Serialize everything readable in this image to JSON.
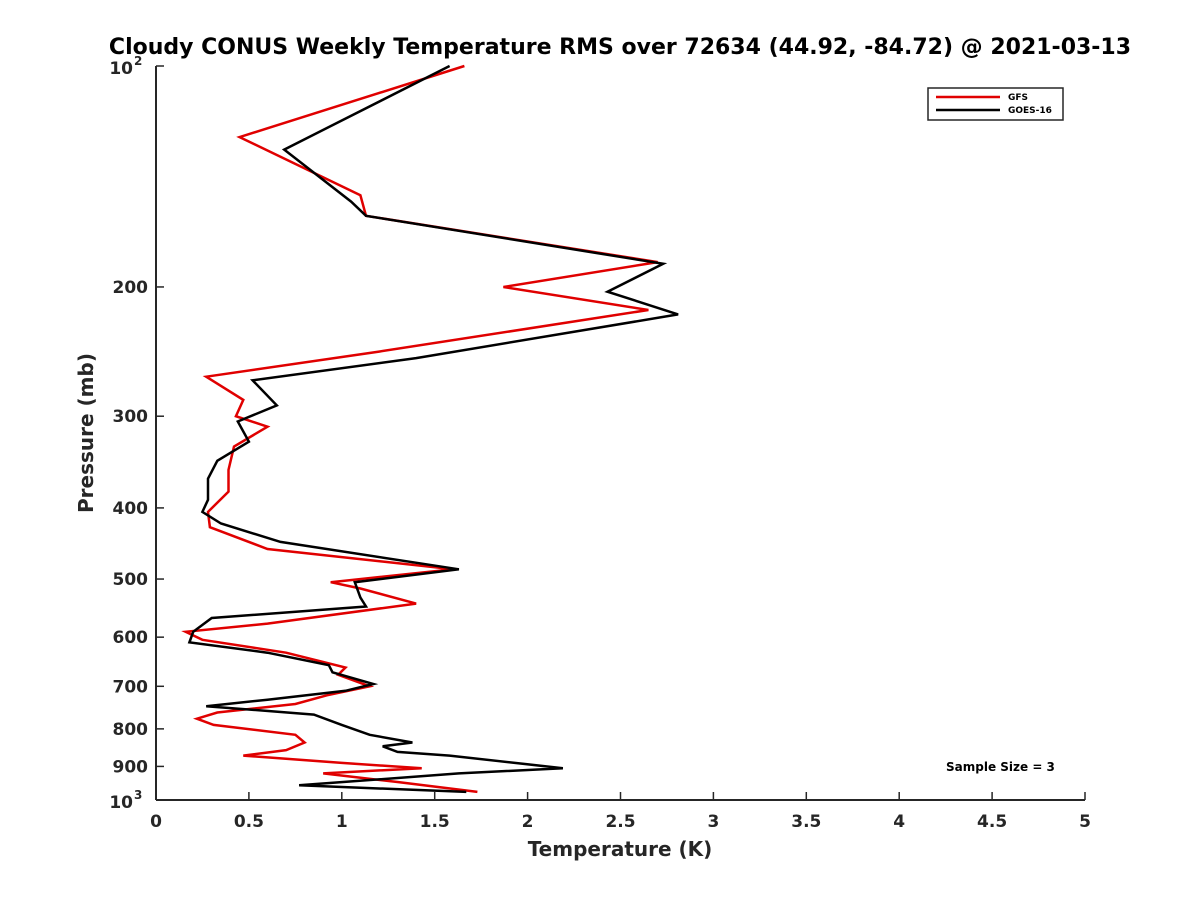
{
  "chart_data": {
    "type": "line",
    "title": "Cloudy CONUS Weekly Temperature RMS over 72634 (44.92, -84.72) @ 2021-03-13",
    "xlabel": "Temperature (K)",
    "ylabel": "Pressure (mb)",
    "xlim": [
      0,
      5
    ],
    "ylim": [
      100,
      1000
    ],
    "y_scale": "log",
    "y_reversed": true,
    "x_ticks": [
      "0",
      "0.5",
      "1",
      "1.5",
      "2",
      "2.5",
      "3",
      "3.5",
      "4",
      "4.5",
      "5"
    ],
    "y_ticks": [
      {
        "value": 100,
        "base": "10",
        "exp": "2"
      },
      {
        "value": 200,
        "label": "200"
      },
      {
        "value": 300,
        "label": "300"
      },
      {
        "value": 400,
        "label": "400"
      },
      {
        "value": 500,
        "label": "500"
      },
      {
        "value": 600,
        "label": "600"
      },
      {
        "value": 700,
        "label": "700"
      },
      {
        "value": 800,
        "label": "800"
      },
      {
        "value": 900,
        "label": "900"
      },
      {
        "value": 1000,
        "base": "10",
        "exp": "3"
      }
    ],
    "grid": false,
    "legend_position": "top-right",
    "annotation": "Sample Size = 3",
    "series": [
      {
        "name": "GFS",
        "color": "#e00000",
        "points": [
          [
            1.66,
            100
          ],
          [
            0.45,
            125
          ],
          [
            1.1,
            150
          ],
          [
            1.13,
            160
          ],
          [
            2.7,
            185
          ],
          [
            1.87,
            200
          ],
          [
            2.65,
            215
          ],
          [
            1.2,
            245
          ],
          [
            0.27,
            265
          ],
          [
            0.47,
            285
          ],
          [
            0.43,
            300
          ],
          [
            0.6,
            310
          ],
          [
            0.42,
            330
          ],
          [
            0.39,
            355
          ],
          [
            0.39,
            380
          ],
          [
            0.28,
            405
          ],
          [
            0.29,
            425
          ],
          [
            0.6,
            455
          ],
          [
            1.6,
            485
          ],
          [
            0.94,
            505
          ],
          [
            1.1,
            515
          ],
          [
            1.4,
            540
          ],
          [
            0.6,
            575
          ],
          [
            0.16,
            590
          ],
          [
            0.25,
            605
          ],
          [
            0.7,
            630
          ],
          [
            1.02,
            660
          ],
          [
            0.98,
            675
          ],
          [
            1.15,
            700
          ],
          [
            0.92,
            720
          ],
          [
            0.75,
            740
          ],
          [
            0.33,
            760
          ],
          [
            0.22,
            775
          ],
          [
            0.31,
            790
          ],
          [
            0.75,
            815
          ],
          [
            0.8,
            835
          ],
          [
            0.7,
            855
          ],
          [
            0.47,
            870
          ],
          [
            1.0,
            890
          ],
          [
            1.43,
            905
          ],
          [
            0.9,
            920
          ],
          [
            1.3,
            945
          ],
          [
            1.73,
            975
          ]
        ]
      },
      {
        "name": "GOES-16",
        "color": "#000000",
        "points": [
          [
            1.58,
            100
          ],
          [
            0.69,
            130
          ],
          [
            1.05,
            153
          ],
          [
            1.13,
            160
          ],
          [
            2.73,
            186
          ],
          [
            2.43,
            203
          ],
          [
            2.81,
            218
          ],
          [
            1.4,
            250
          ],
          [
            0.52,
            268
          ],
          [
            0.65,
            290
          ],
          [
            0.44,
            305
          ],
          [
            0.5,
            325
          ],
          [
            0.33,
            345
          ],
          [
            0.28,
            365
          ],
          [
            0.28,
            390
          ],
          [
            0.25,
            405
          ],
          [
            0.35,
            420
          ],
          [
            0.67,
            445
          ],
          [
            1.63,
            485
          ],
          [
            1.07,
            505
          ],
          [
            1.1,
            530
          ],
          [
            1.13,
            545
          ],
          [
            0.3,
            565
          ],
          [
            0.2,
            590
          ],
          [
            0.18,
            610
          ],
          [
            0.6,
            630
          ],
          [
            0.93,
            655
          ],
          [
            0.95,
            670
          ],
          [
            1.17,
            695
          ],
          [
            1.02,
            710
          ],
          [
            0.6,
            730
          ],
          [
            0.27,
            745
          ],
          [
            0.85,
            765
          ],
          [
            1.0,
            790
          ],
          [
            1.15,
            815
          ],
          [
            1.38,
            835
          ],
          [
            1.22,
            845
          ],
          [
            1.3,
            860
          ],
          [
            1.58,
            870
          ],
          [
            2.19,
            905
          ],
          [
            1.63,
            920
          ],
          [
            0.77,
            955
          ],
          [
            1.67,
            975
          ]
        ]
      }
    ]
  }
}
